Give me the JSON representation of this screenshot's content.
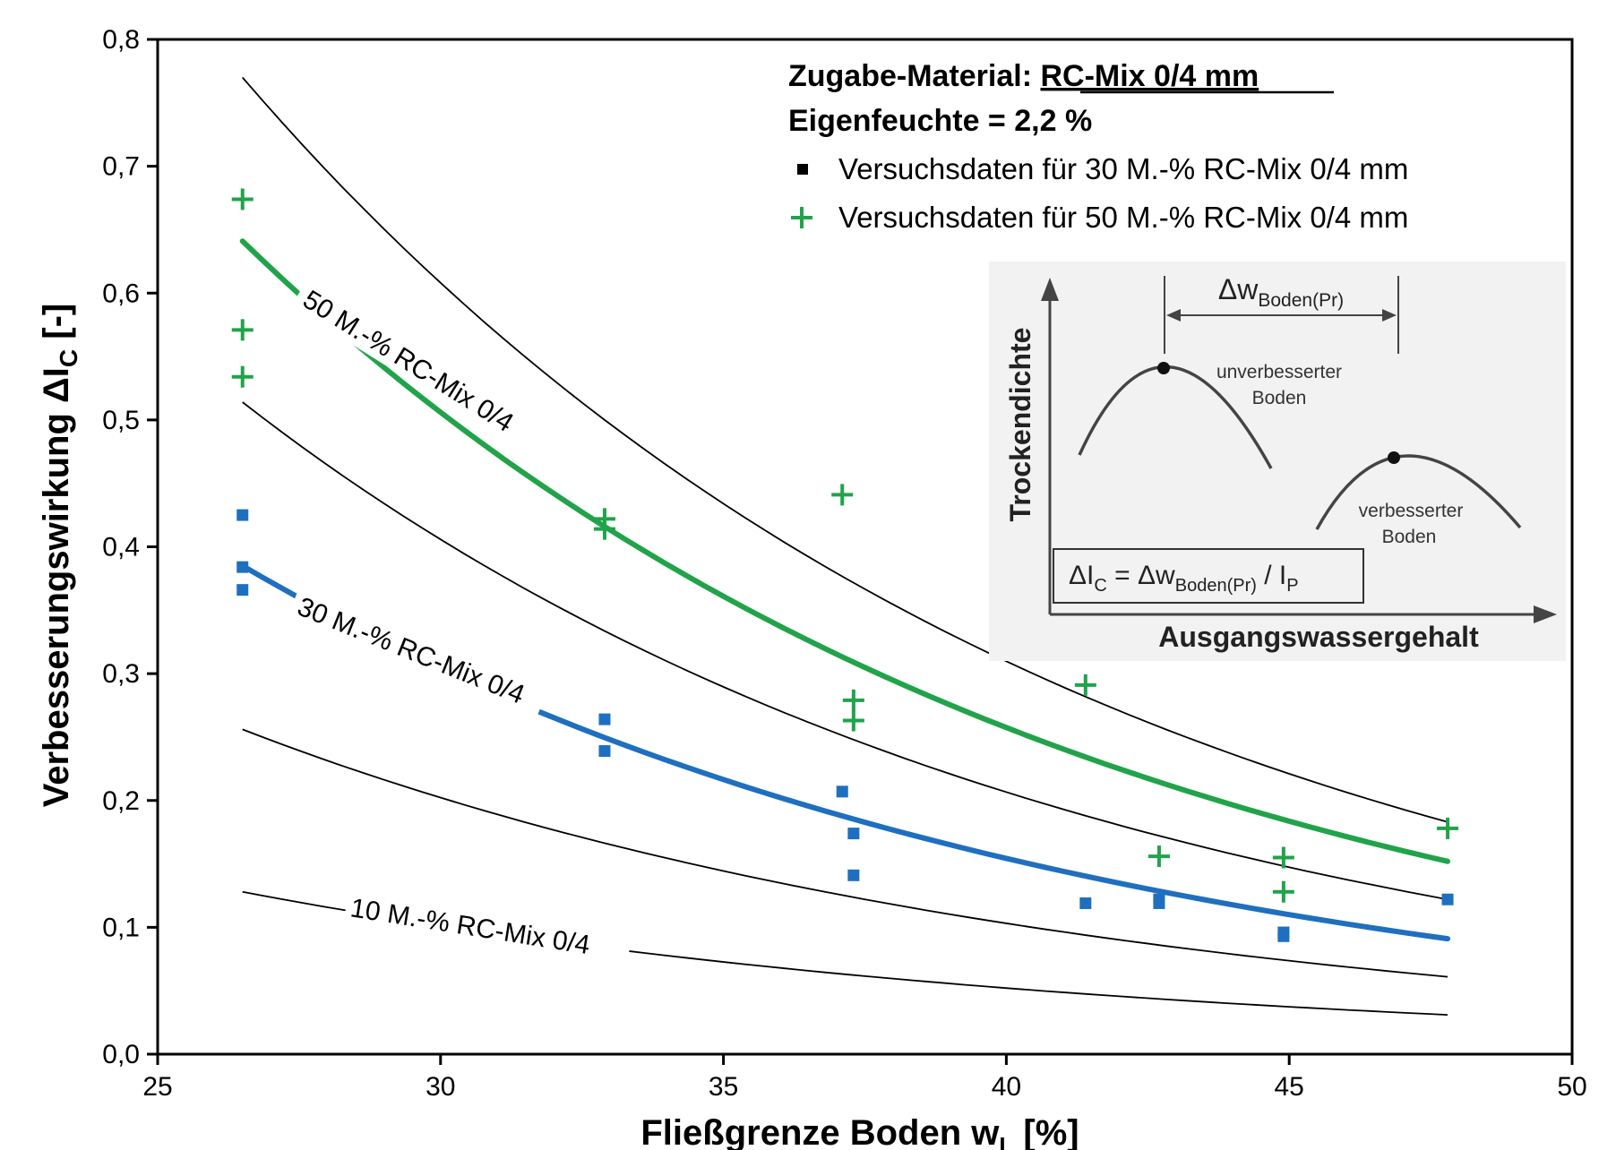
{
  "chart_data": {
    "type": "scatter",
    "xlabel_main": "Fließgrenze Boden w",
    "xlabel_sub": "L",
    "xlabel_unit": "[%]",
    "ylabel_main": "Verbesserungswirkung ΔI",
    "ylabel_sub": "C",
    "ylabel_unit": "[-]",
    "xlim": [
      25,
      50
    ],
    "ylim": [
      0.0,
      0.8
    ],
    "x_ticks": [
      25,
      30,
      35,
      40,
      45,
      50
    ],
    "x_tick_labels": [
      "25",
      "30",
      "35",
      "40",
      "45",
      "50"
    ],
    "y_ticks": [
      0.0,
      0.1,
      0.2,
      0.3,
      0.4,
      0.5,
      0.6,
      0.7,
      0.8
    ],
    "y_tick_labels": [
      "0,0",
      "0,1",
      "0,2",
      "0,3",
      "0,4",
      "0,5",
      "0,6",
      "0,7",
      "0,8"
    ],
    "grid": false,
    "legend_position": "top-right",
    "annotation": {
      "title_prefix": "Zugabe-Material: ",
      "title_material": "RC-Mix 0/4 mm",
      "moisture": "Eigenfeuchte = 2,2 %",
      "legend": [
        {
          "marker": "square",
          "label": "Versuchsdaten für 30 M.-% RC-Mix 0/4 mm"
        },
        {
          "marker": "plus",
          "label": "Versuchsdaten für 50 M.-% RC-Mix 0/4 mm"
        }
      ]
    },
    "series": [
      {
        "name": "Versuchsdaten für 30 M.-% RC-Mix 0/4 mm",
        "marker": "square",
        "color": "#1f6fc0",
        "points": [
          [
            26.5,
            0.425
          ],
          [
            26.5,
            0.384
          ],
          [
            26.5,
            0.366
          ],
          [
            32.9,
            0.264
          ],
          [
            32.9,
            0.239
          ],
          [
            37.1,
            0.207
          ],
          [
            37.3,
            0.174
          ],
          [
            37.3,
            0.141
          ],
          [
            41.4,
            0.119
          ],
          [
            42.7,
            0.122
          ],
          [
            42.7,
            0.119
          ],
          [
            44.9,
            0.096
          ],
          [
            44.9,
            0.093
          ],
          [
            47.8,
            0.122
          ]
        ]
      },
      {
        "name": "Versuchsdaten für 50 M.-% RC-Mix 0/4 mm",
        "marker": "plus",
        "color": "#21a34a",
        "points": [
          [
            26.5,
            0.674
          ],
          [
            26.5,
            0.571
          ],
          [
            26.5,
            0.534
          ],
          [
            32.9,
            0.422
          ],
          [
            32.9,
            0.414
          ],
          [
            37.1,
            0.441
          ],
          [
            37.3,
            0.279
          ],
          [
            37.3,
            0.263
          ],
          [
            41.4,
            0.291
          ],
          [
            42.7,
            0.156
          ],
          [
            44.9,
            0.155
          ],
          [
            44.9,
            0.128
          ],
          [
            47.8,
            0.178
          ]
        ]
      }
    ],
    "fit_curves": [
      {
        "label": "50 M.-% RC-Mix 0/4",
        "color": "#21a34a",
        "x_range": [
          26.5,
          47.8
        ],
        "y_start": 0.641,
        "y_end": 0.152
      },
      {
        "label": "30 M.-% RC-Mix 0/4",
        "color": "#1f6fc0",
        "x_range": [
          26.5,
          47.8
        ],
        "y_start": 0.385,
        "y_end": 0.091
      }
    ],
    "guide_curves": [
      {
        "x_range": [
          26.5,
          47.8
        ],
        "y_start": 0.77,
        "y_end": 0.183
      },
      {
        "x_range": [
          26.5,
          47.8
        ],
        "y_start": 0.514,
        "y_end": 0.122
      },
      {
        "x_range": [
          26.5,
          47.8
        ],
        "y_start": 0.256,
        "y_end": 0.061
      },
      {
        "label": "10 M.-% RC-Mix 0/4",
        "x_range": [
          26.5,
          47.8
        ],
        "y_start": 0.128,
        "y_end": 0.031
      }
    ],
    "inset": {
      "delta_w": "Δw",
      "delta_w_sub": "Boden(Pr)",
      "y_axis_label": "Trockendichte",
      "x_axis_label": "Ausgangswassergehalt",
      "curve1_label_line1": "unverbesserter",
      "curve1_label_line2": "Boden",
      "curve2_label_line1": "verbesserter",
      "curve2_label_line2": "Boden",
      "formula_part1": "ΔI",
      "formula_sub1": "C",
      "formula_part2": " = Δw",
      "formula_sub2": "Boden(Pr)",
      "formula_part3": " / I",
      "formula_sub3": "P"
    }
  }
}
